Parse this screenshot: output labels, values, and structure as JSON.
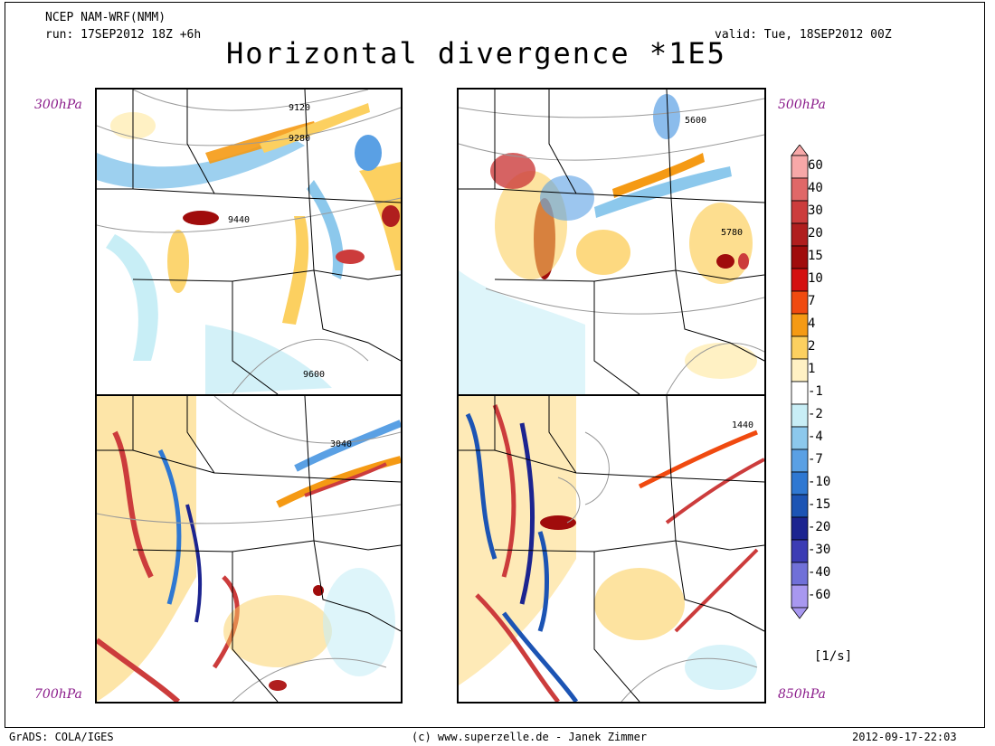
{
  "header": {
    "model": "NCEP NAM-WRF(NMM)",
    "run": "run: 17SEP2012 18Z +6h",
    "valid": "valid: Tue, 18SEP2012 00Z",
    "title": "Horizontal divergence *1E5"
  },
  "panels": [
    {
      "id": "300",
      "level_label": "300hPa",
      "contours": [
        "9120",
        "9280",
        "9440",
        "9600"
      ]
    },
    {
      "id": "500",
      "level_label": "500hPa",
      "contours": [
        "5600",
        "5780"
      ]
    },
    {
      "id": "700",
      "level_label": "700hPa",
      "contours": [
        "3040"
      ]
    },
    {
      "id": "850",
      "level_label": "850hPa",
      "contours": [
        "1440"
      ]
    }
  ],
  "colorbar": {
    "levels": [
      "60",
      "40",
      "30",
      "20",
      "15",
      "10",
      "7",
      "4",
      "2",
      "1",
      "-1",
      "-2",
      "-4",
      "-7",
      "-10",
      "-15",
      "-20",
      "-30",
      "-40",
      "-60"
    ],
    "colors": [
      "#f7a8a8",
      "#e06868",
      "#cc3c3c",
      "#b01e1e",
      "#a00c0c",
      "#d41010",
      "#f04a10",
      "#f59a14",
      "#fcd060",
      "#fff1c4",
      "#ffffff",
      "#c8eef6",
      "#8cc8ec",
      "#5aa0e4",
      "#2f78d2",
      "#1c54b4",
      "#1c2490",
      "#3c3cb4",
      "#7070d8",
      "#a898f0"
    ],
    "units": "[1/s]"
  },
  "footer": {
    "left": "GrADS: COLA/IGES",
    "center": "(c) www.superzelle.de - Janek Zimmer",
    "right": "2012-09-17-22:03"
  }
}
